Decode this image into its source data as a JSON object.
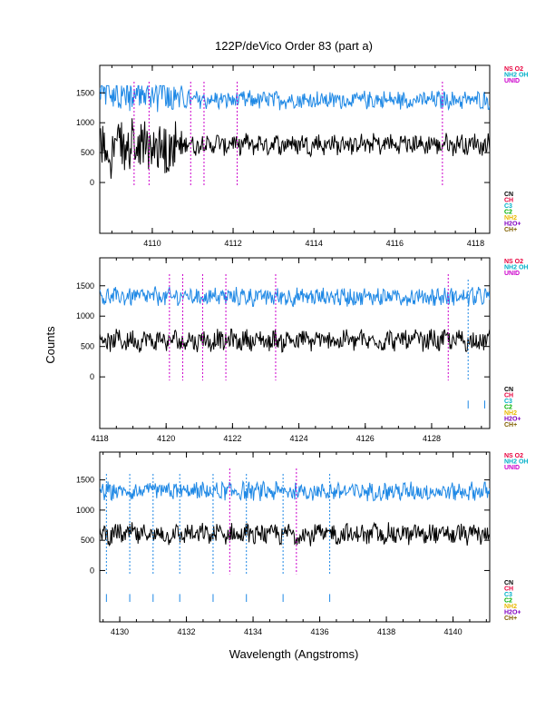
{
  "chart_data": {
    "type": "line",
    "title": "122P/deVico Order 83 (part a)",
    "xlabel": "Wavelength (Angstroms)",
    "ylabel": "Counts",
    "colors": {
      "spectrum_blue": "#1e88e5",
      "spectrum_black": "#000000",
      "marker_magenta": "#cc00cc",
      "marker_blue": "#1e88e5"
    },
    "legend_top": [
      {
        "label": "NS O2",
        "color": "#e8003d"
      },
      {
        "label": "NH2 OH",
        "color": "#00b0c8"
      },
      {
        "label": "UNID",
        "color": "#cc00cc"
      }
    ],
    "legend_bottom": [
      {
        "label": "CN",
        "color": "#000000"
      },
      {
        "label": "CH",
        "color": "#e8003d"
      },
      {
        "label": "C3",
        "color": "#00b0c8"
      },
      {
        "label": "C2",
        "color": "#00b000"
      },
      {
        "label": "NH2",
        "color": "#e8b800"
      },
      {
        "label": "H2O+",
        "color": "#8000c0"
      },
      {
        "label": "CH+",
        "color": "#806000"
      }
    ],
    "panels": [
      {
        "xlim": [
          4108.7,
          4118.35
        ],
        "ylim": [
          -850,
          1960
        ],
        "xticks": [
          4110,
          4112,
          4114,
          4116,
          4118
        ],
        "yticks": [
          0,
          500,
          1000,
          1500
        ],
        "upper_mean": 1380,
        "lower_mean": 640,
        "magenta_lines": [
          4109.55,
          4109.92,
          4110.95,
          4111.28,
          4112.1,
          4117.18
        ],
        "blue_lines": [],
        "blue_ticks": []
      },
      {
        "xlim": [
          4118,
          4129.75
        ],
        "ylim": [
          -850,
          1960
        ],
        "xticks": [
          4118,
          4120,
          4122,
          4124,
          4126,
          4128
        ],
        "yticks": [
          0,
          500,
          1000,
          1500
        ],
        "upper_mean": 1320,
        "lower_mean": 600,
        "magenta_lines": [
          4120.1,
          4120.5,
          4121.1,
          4121.8,
          4123.3,
          4128.5
        ],
        "blue_lines": [
          4129.1
        ],
        "blue_ticks": [
          4129.1,
          4129.6
        ]
      },
      {
        "xlim": [
          4129.4,
          4141.1
        ],
        "ylim": [
          -850,
          1960
        ],
        "xticks": [
          4130,
          4132,
          4134,
          4136,
          4138,
          4140
        ],
        "yticks": [
          0,
          500,
          1000,
          1500
        ],
        "upper_mean": 1310,
        "lower_mean": 600,
        "magenta_lines": [
          4133.3,
          4135.3
        ],
        "blue_lines": [
          4129.6,
          4130.3,
          4131.0,
          4131.8,
          4132.8,
          4133.8,
          4134.9,
          4136.3
        ],
        "blue_ticks": [
          4129.6,
          4130.3,
          4131.0,
          4131.8,
          4132.8,
          4133.8,
          4134.9,
          4136.3
        ]
      }
    ]
  }
}
